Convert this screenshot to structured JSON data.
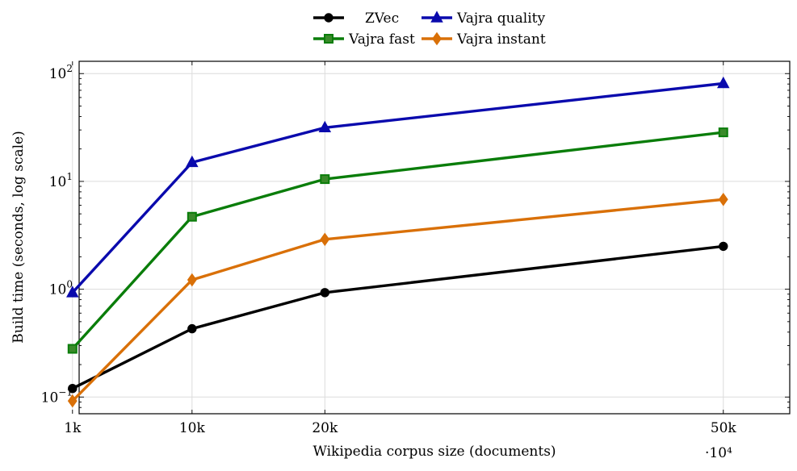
{
  "chart_data": {
    "type": "line",
    "title": "",
    "xlabel": "Wikipedia corpus size (documents)",
    "ylabel": "Build time (seconds, log scale)",
    "x_scale_note": "·10⁴",
    "yscale": "log",
    "ylim": [
      0.07,
      130
    ],
    "xlim": [
      0.15,
      5.5
    ],
    "grid": true,
    "legend_position": "top-center",
    "x": [
      0.1,
      1,
      2,
      5
    ],
    "x_tick_labels": [
      "1k",
      "10k",
      "20k",
      "50k"
    ],
    "y_ticks": [
      0.1,
      1,
      10,
      100
    ],
    "y_tick_labels": [
      {
        "base": "10",
        "exp": "−1"
      },
      {
        "base": "10",
        "exp": "0"
      },
      {
        "base": "10",
        "exp": "1"
      },
      {
        "base": "10",
        "exp": "2"
      }
    ],
    "series": [
      {
        "name": "ZVec",
        "color": "#000000",
        "marker": "circle",
        "values": [
          0.12,
          0.43,
          0.93,
          2.5
        ]
      },
      {
        "name": "Vajra quality",
        "color": "#0a0aad",
        "marker": "triangle",
        "values": [
          0.93,
          15,
          31.5,
          81
        ]
      },
      {
        "name": "Vajra fast",
        "color": "#0a7d0a",
        "marker": "square",
        "values": [
          0.28,
          4.7,
          10.5,
          28.5
        ]
      },
      {
        "name": "Vajra instant",
        "color": "#d97008",
        "marker": "diamond",
        "values": [
          0.092,
          1.22,
          2.9,
          6.8
        ]
      }
    ]
  }
}
